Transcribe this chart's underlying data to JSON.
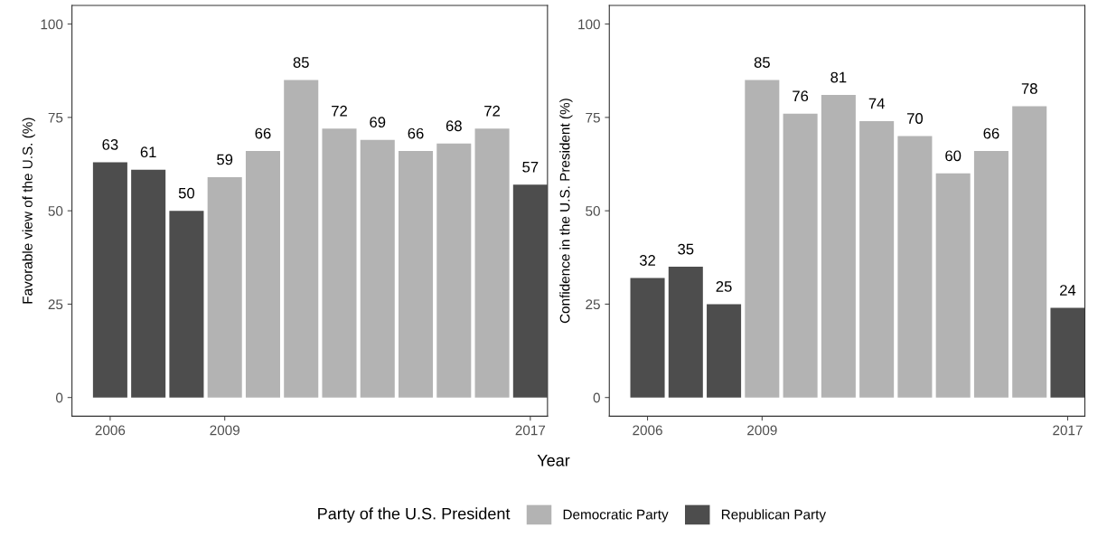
{
  "chart_data": [
    {
      "type": "bar",
      "ylabel": "Favorable view of the U.S. (%)",
      "xlabel": "Year",
      "legend_title": "Party of the U.S. President",
      "legend": "bottom",
      "x": [
        2006,
        2007,
        2008,
        2009,
        2010,
        2011,
        2012,
        2013,
        2014,
        2015,
        2016,
        2017
      ],
      "series": [
        {
          "name": "Democratic Party",
          "color": "#b3b3b3",
          "values": [
            null,
            null,
            null,
            59,
            66,
            85,
            72,
            69,
            66,
            68,
            72,
            null
          ]
        },
        {
          "name": "Republican Party",
          "color": "#4d4d4d",
          "values": [
            63,
            61,
            50,
            null,
            null,
            null,
            null,
            null,
            null,
            null,
            null,
            57
          ]
        }
      ],
      "xlim": [
        2005.0,
        2017.45
      ],
      "xticks": [
        2006,
        2009,
        2017
      ],
      "ylim": [
        -5,
        105
      ],
      "yticks": [
        0,
        25,
        50,
        75,
        100
      ],
      "grid": false,
      "data_labels": true
    },
    {
      "type": "bar",
      "ylabel": "Confidence in the U.S. President (%)",
      "x": [
        2006,
        2007,
        2008,
        2009,
        2010,
        2011,
        2012,
        2013,
        2014,
        2015,
        2016,
        2017
      ],
      "series": [
        {
          "color": "#b3b3b3",
          "values": [
            null,
            null,
            null,
            85,
            76,
            81,
            74,
            70,
            60,
            66,
            78,
            null
          ]
        },
        {
          "color": "#4d4d4d",
          "values": [
            32,
            35,
            25,
            null,
            null,
            null,
            null,
            null,
            null,
            null,
            null,
            24
          ]
        }
      ],
      "xlim": [
        2005.0,
        2017.45
      ],
      "xticks": [
        2006,
        2009,
        2017
      ],
      "ylim": [
        -5,
        105
      ],
      "yticks": [
        0,
        25,
        50,
        75,
        100
      ],
      "grid": false,
      "data_labels": true
    }
  ]
}
